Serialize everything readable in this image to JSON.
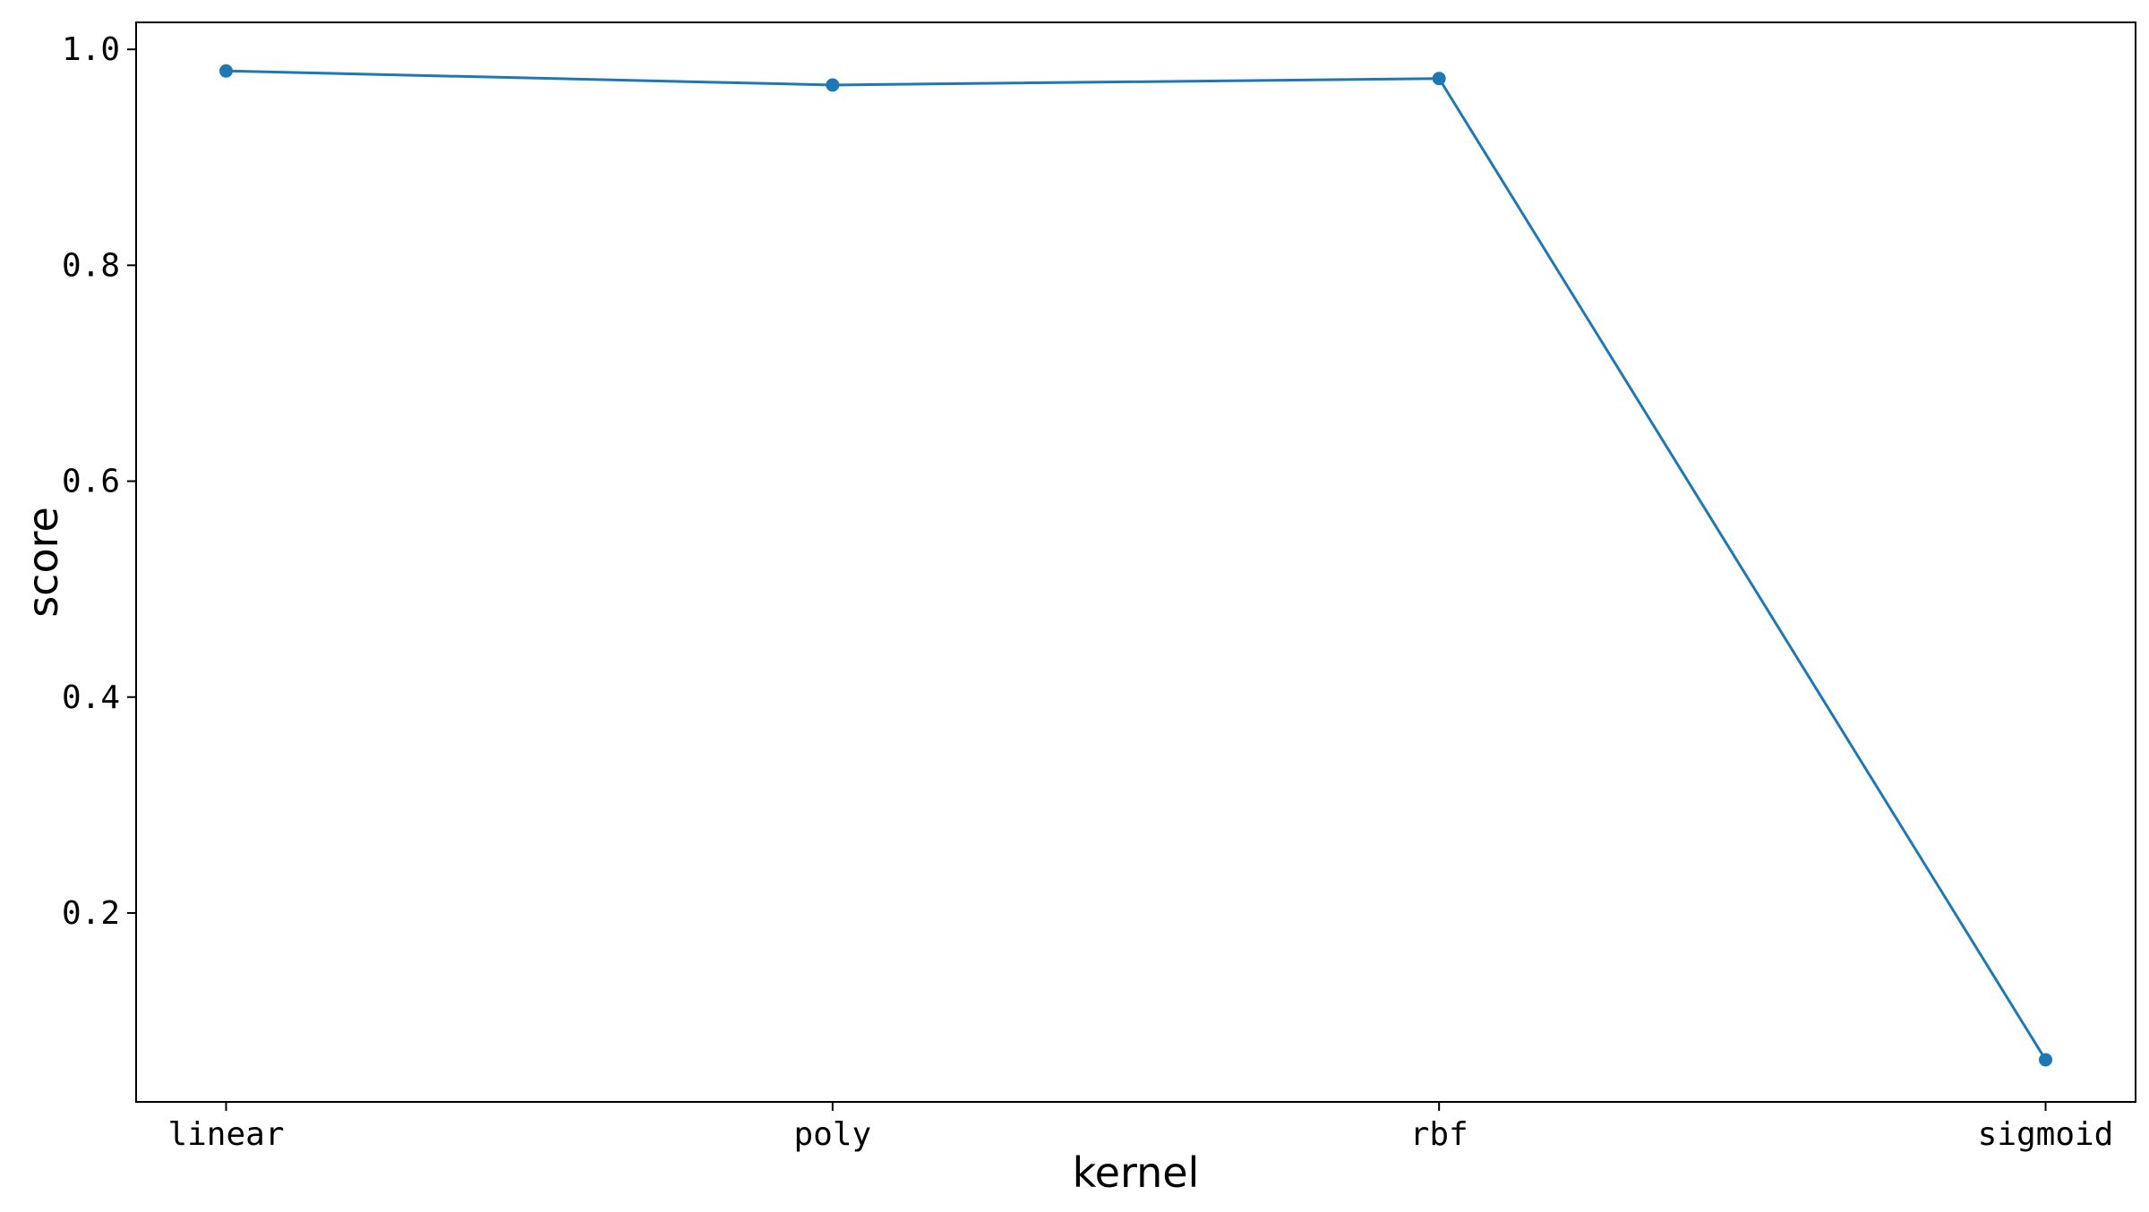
{
  "chart_data": {
    "type": "line",
    "categories": [
      "linear",
      "poly",
      "rbf",
      "sigmoid"
    ],
    "series": [
      {
        "values": [
          0.98,
          0.967,
          0.973,
          0.064
        ],
        "color": "#1f77b4",
        "marker": "circle"
      }
    ],
    "xlabel": "kernel",
    "ylabel": "score",
    "ylim": [
      0.025,
      1.025
    ],
    "yticks": [
      0.2,
      0.4,
      0.6,
      0.8,
      1.0
    ],
    "ytick_labels": [
      "0.2",
      "0.4",
      "0.6",
      "0.8",
      "1.0"
    ],
    "grid": false,
    "legend": "none"
  }
}
